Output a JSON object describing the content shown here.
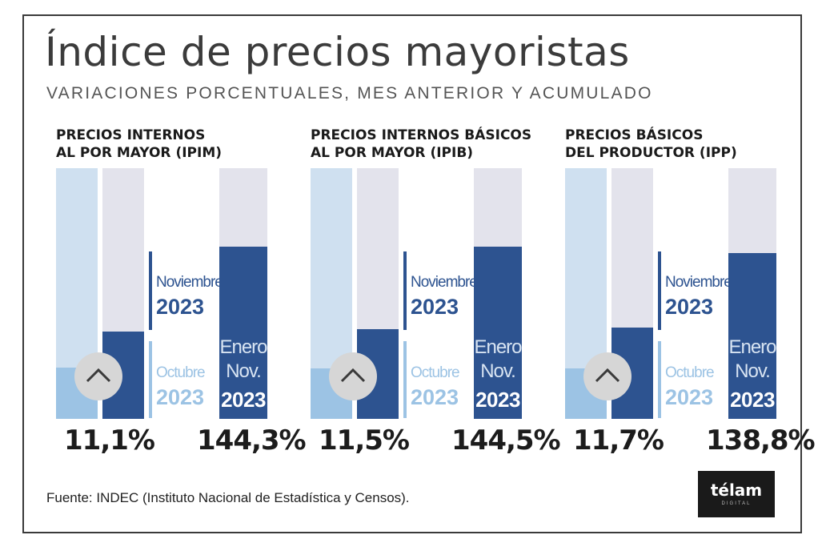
{
  "title": "Índice de precios mayoristas",
  "subtitle": "VARIACIONES PORCENTUALES, MES ANTERIOR Y ACUMULADO",
  "footer": "Fuente: INDEC (Instituto Nacional de Estadística y Censos).",
  "logo": {
    "name": "télam",
    "sub": "DIGITAL"
  },
  "legend": {
    "current_month": "Noviembre",
    "current_year": "2023",
    "previous_month": "Octubre",
    "previous_year": "2023",
    "accum_line1": "Enero",
    "accum_line2": "Nov.",
    "accum_year": "2023"
  },
  "colors": {
    "previous": "#9cc3e4",
    "current": "#2d5390",
    "accumulated": "#2d5390",
    "background_bar": "#e3e3ec"
  },
  "chart_data": [
    {
      "type": "bar",
      "title": "PRECIOS INTERNOS AL POR MAYOR (IPIM)",
      "title_lines": [
        "PRECIOS INTERNOS",
        "AL POR MAYOR (IPIM)"
      ],
      "monthly": {
        "Octubre 2023": 6.5,
        "Noviembre 2023": 11.1
      },
      "accumulated": {
        "Enero-Nov. 2023": 144.3
      },
      "labels": {
        "monthly": "11,1%",
        "accumulated": "144,3%"
      },
      "trend": "up"
    },
    {
      "type": "bar",
      "title": "PRECIOS INTERNOS BÁSICOS AL POR MAYOR (IPIB)",
      "title_lines": [
        "PRECIOS INTERNOS BÁSICOS",
        "AL POR MAYOR (IPIB)"
      ],
      "monthly": {
        "Octubre 2023": 6.4,
        "Noviembre 2023": 11.5
      },
      "accumulated": {
        "Enero-Nov. 2023": 144.5
      },
      "labels": {
        "monthly": "11,5%",
        "accumulated": "144,5%"
      },
      "trend": "up"
    },
    {
      "type": "bar",
      "title": "PRECIOS BÁSICOS DEL PRODUCTOR (IPP)",
      "title_lines": [
        "PRECIOS BÁSICOS",
        "DEL PRODUCTOR (IPP)"
      ],
      "monthly": {
        "Octubre 2023": 6.4,
        "Noviembre 2023": 11.7
      },
      "accumulated": {
        "Enero-Nov. 2023": 138.8
      },
      "labels": {
        "monthly": "11,7%",
        "accumulated": "138,8%"
      },
      "trend": "up"
    }
  ]
}
